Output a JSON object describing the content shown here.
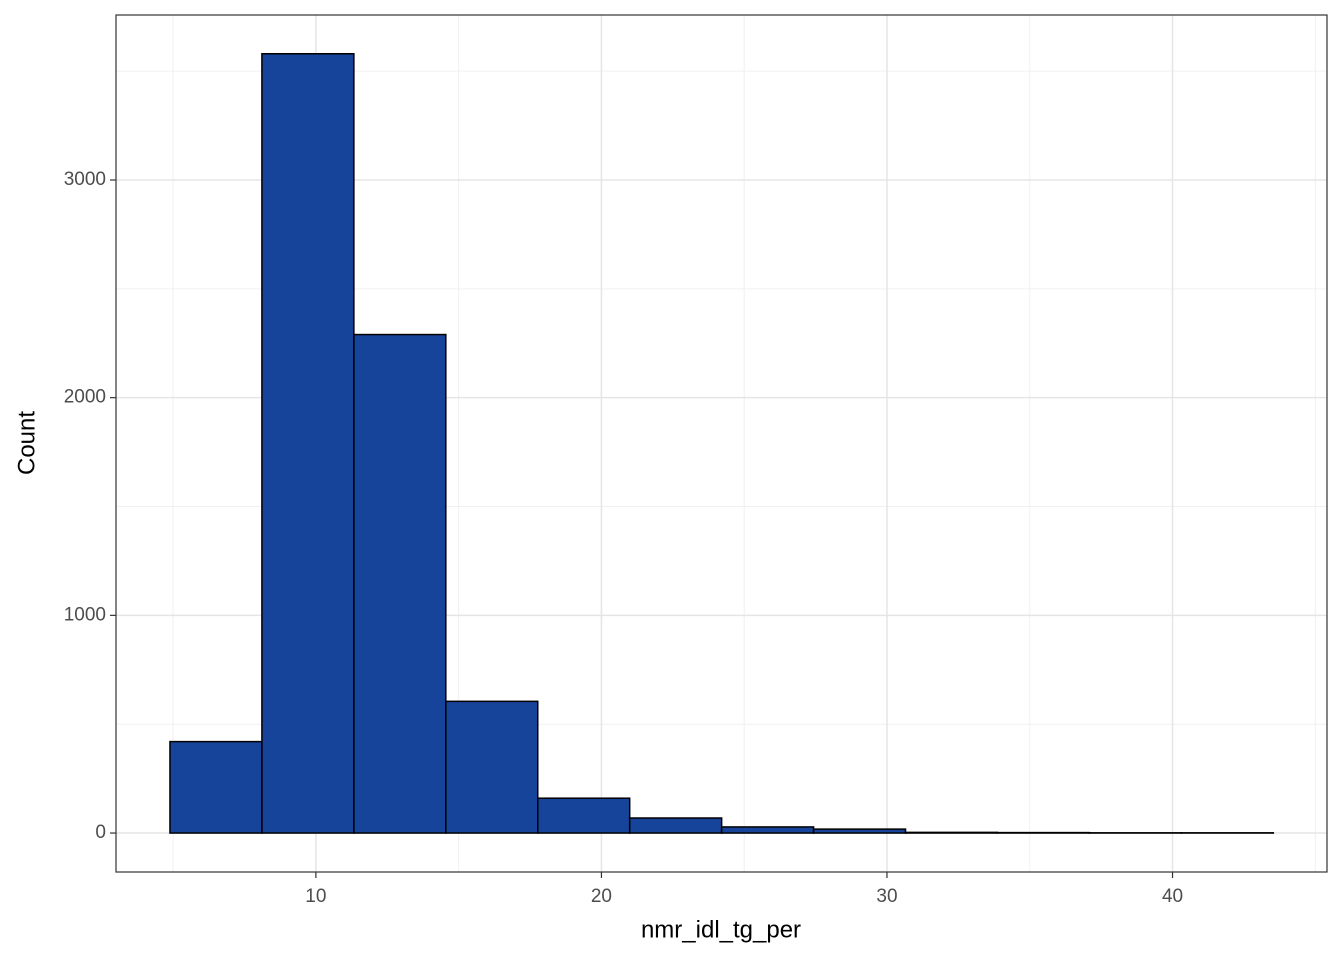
{
  "chart_data": {
    "type": "histogram",
    "x_label": "nmr_idl_tg_per",
    "y_label": "Count",
    "bins": [
      4.89,
      8.11,
      11.33,
      14.55,
      17.77,
      20.99,
      24.21,
      27.43,
      30.65,
      33.87,
      37.09,
      40.31,
      43.53
    ],
    "values": [
      420,
      3580,
      2290,
      605,
      160,
      69,
      28,
      18,
      3,
      2,
      1,
      1
    ],
    "color": "#17449b",
    "edge_color": "#000000",
    "xlim": [
      3.0,
      45.41
    ],
    "ylim": [
      -179,
      3758
    ],
    "xticks": [
      10,
      20,
      30,
      40
    ],
    "yticks": [
      0,
      1000,
      2000,
      3000
    ],
    "minor_xticks": [
      5,
      15,
      25,
      35,
      45
    ],
    "minor_yticks": [
      500,
      1500,
      2500,
      3500
    ],
    "grid": true
  }
}
